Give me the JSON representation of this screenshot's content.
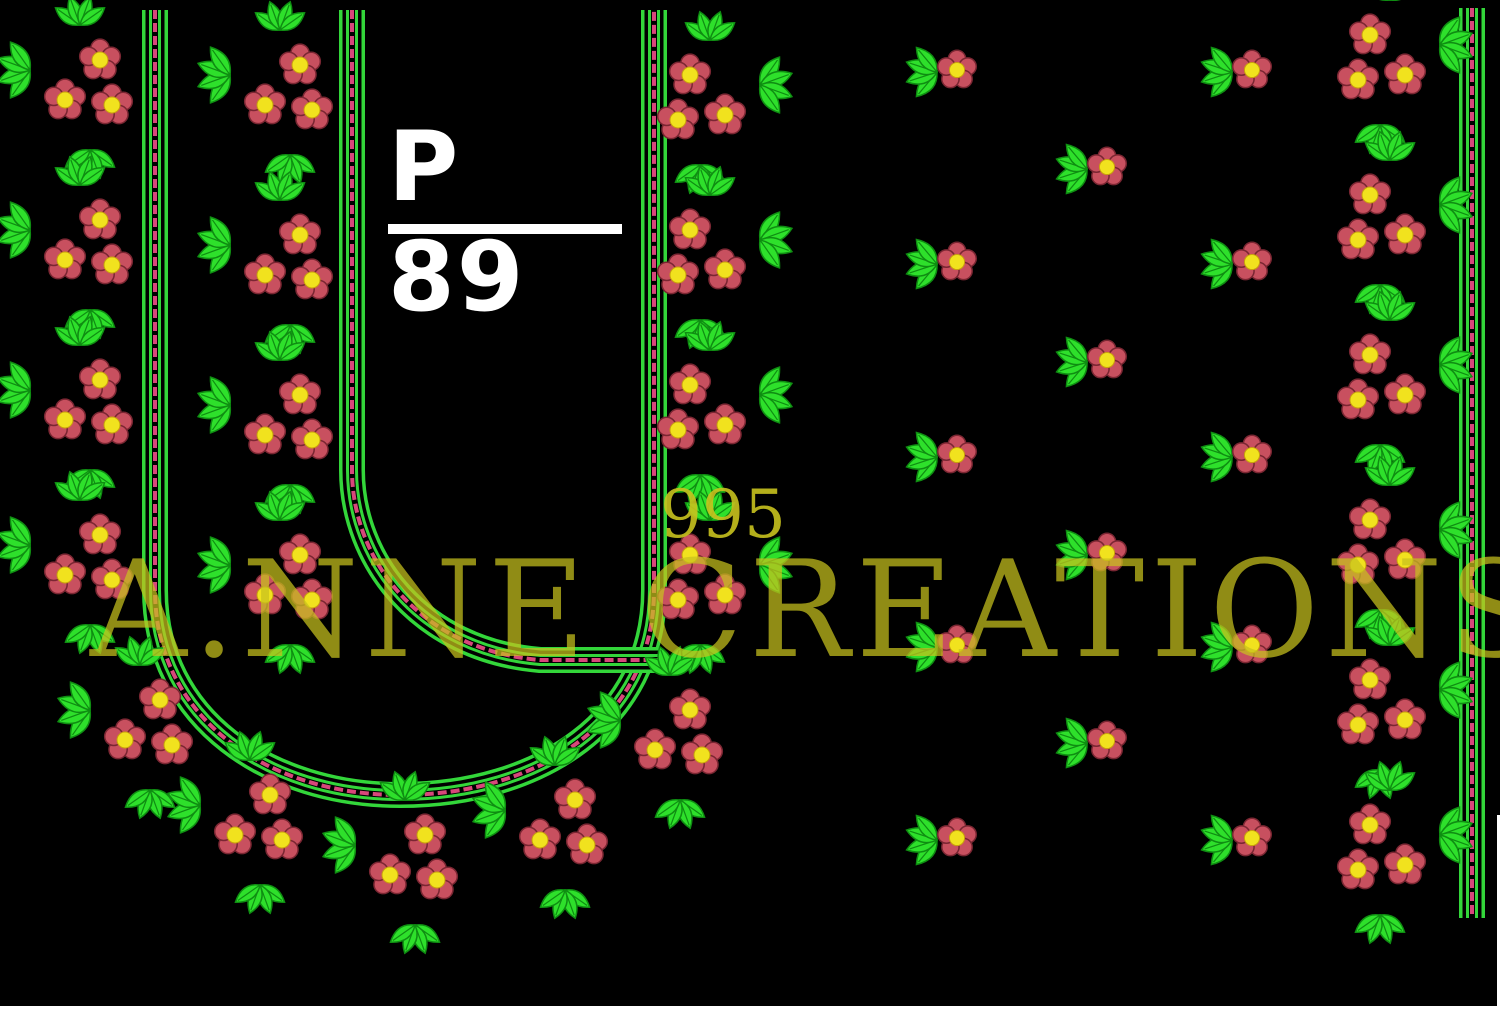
{
  "design": {
    "title": "P 89",
    "watermark_number": "995",
    "watermark_text": "A.NNE CREATIONS"
  },
  "colors": {
    "background": "#000000",
    "leaf": "#2ee02b",
    "leaf_dark": "#0f8d12",
    "petal": "#c8505f",
    "petal_dark": "#7a2632",
    "center": "#f1e21e",
    "border_pink": "#d7477a",
    "border_green": "#33d63a",
    "watermark": "#c8c21e",
    "title": "#ffffff"
  },
  "icons": {
    "motif": "flower-cluster-icon",
    "butta": "single-flower-icon"
  }
}
